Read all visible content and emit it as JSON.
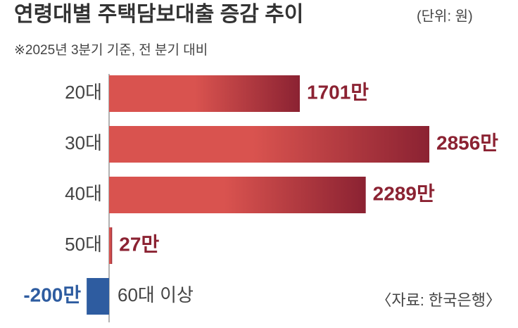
{
  "chart_data": {
    "type": "bar",
    "orientation": "horizontal",
    "title": "연령대별 주택담보대출 증감 추이",
    "unit": "(단위: 원)",
    "subtitle": "※2025년 3분기 기준, 전 분기 대비",
    "source": "〈자료: 한국은행〉",
    "categories": [
      "20대",
      "30대",
      "40대",
      "50대",
      "60대 이상"
    ],
    "values": [
      1701,
      2856,
      2289,
      27,
      -200
    ],
    "value_labels": [
      "1701만",
      "2856만",
      "2289만",
      "27만",
      "-200만"
    ],
    "color": "#d9534f",
    "negative_color": "#2e5ca0",
    "label_color": "#8b2232"
  }
}
